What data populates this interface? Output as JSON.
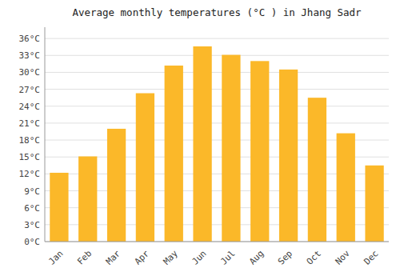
{
  "chart_data": {
    "type": "bar",
    "title": "Average monthly temperatures (°C ) in Jhang Sadr",
    "categories": [
      "Jan",
      "Feb",
      "Mar",
      "Apr",
      "May",
      "Jun",
      "Jul",
      "Aug",
      "Sep",
      "Oct",
      "Nov",
      "Dec"
    ],
    "values": [
      12.2,
      15.1,
      20.0,
      26.3,
      31.2,
      34.6,
      33.1,
      32.0,
      30.5,
      25.5,
      19.2,
      13.5
    ],
    "color": "#FBB829",
    "ylim": [
      0,
      38
    ],
    "yticks": [
      {
        "value": 0,
        "label": "0°C"
      },
      {
        "value": 3,
        "label": "3°C"
      },
      {
        "value": 6,
        "label": "6°C"
      },
      {
        "value": 9,
        "label": "9°C"
      },
      {
        "value": 12,
        "label": "12°C"
      },
      {
        "value": 15,
        "label": "15°C"
      },
      {
        "value": 18,
        "label": "18°C"
      },
      {
        "value": 21,
        "label": "21°C"
      },
      {
        "value": 24,
        "label": "24°C"
      },
      {
        "value": 27,
        "label": "27°C"
      },
      {
        "value": 30,
        "label": "30°C"
      },
      {
        "value": 33,
        "label": "33°C"
      },
      {
        "value": 36,
        "label": "36°C"
      }
    ],
    "grid": true
  }
}
